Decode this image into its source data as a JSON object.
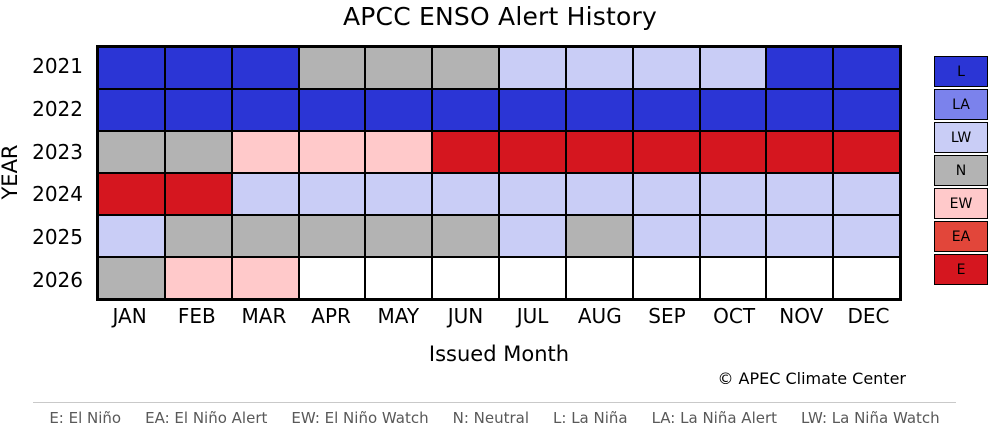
{
  "title": "APCC ENSO Alert History",
  "axes": {
    "x_label": "Issued Month",
    "y_label": "YEAR"
  },
  "copyright": "© APEC Climate Center",
  "caption": {
    "items": [
      "E: El Niño",
      "EA: El Niño Alert",
      "EW: El Niño Watch",
      "N: Neutral",
      "L: La Niña",
      "LA: La Niña Alert",
      "LW: La Niña Watch"
    ]
  },
  "chart_data": {
    "type": "heatmap",
    "title": "APCC ENSO Alert History",
    "xlabel": "Issued Month",
    "ylabel": "YEAR",
    "columns": [
      "JAN",
      "FEB",
      "MAR",
      "APR",
      "MAY",
      "JUN",
      "JUL",
      "AUG",
      "SEP",
      "OCT",
      "NOV",
      "DEC"
    ],
    "rows": [
      "2021",
      "2022",
      "2023",
      "2024",
      "2025",
      "2026"
    ],
    "cells": [
      [
        "L",
        "L",
        "L",
        "N",
        "N",
        "N",
        "LW",
        "LW",
        "LW",
        "LW",
        "L",
        "L"
      ],
      [
        "L",
        "L",
        "L",
        "L",
        "L",
        "L",
        "L",
        "L",
        "L",
        "L",
        "L",
        "L"
      ],
      [
        "N",
        "N",
        "EW",
        "EW",
        "EW",
        "E",
        "E",
        "E",
        "E",
        "E",
        "E",
        "E"
      ],
      [
        "E",
        "E",
        "LW",
        "LW",
        "LW",
        "LW",
        "LW",
        "LW",
        "LW",
        "LW",
        "LW",
        "LW"
      ],
      [
        "LW",
        "N",
        "N",
        "N",
        "N",
        "N",
        "LW",
        "N",
        "LW",
        "LW",
        "LW",
        "LW"
      ],
      [
        "N",
        "EW",
        "EW",
        "",
        "",
        "",
        "",
        "",
        "",
        "",
        "",
        ""
      ]
    ],
    "legend": [
      {
        "code": "L",
        "label": "La Niña",
        "color": "#2b35d5"
      },
      {
        "code": "LA",
        "label": "La Niña Alert",
        "color": "#7b82ec"
      },
      {
        "code": "LW",
        "label": "La Niña Watch",
        "color": "#c9cdf6"
      },
      {
        "code": "N",
        "label": "Neutral",
        "color": "#b3b3b3"
      },
      {
        "code": "EW",
        "label": "El Niño Watch",
        "color": "#ffc9ca"
      },
      {
        "code": "EA",
        "label": "El Niño Alert",
        "color": "#e2463a"
      },
      {
        "code": "E",
        "label": "El Niño",
        "color": "#d5161f"
      }
    ],
    "empty_color": "#ffffff",
    "grid_line_color": "#000000",
    "legend_position": "right"
  }
}
